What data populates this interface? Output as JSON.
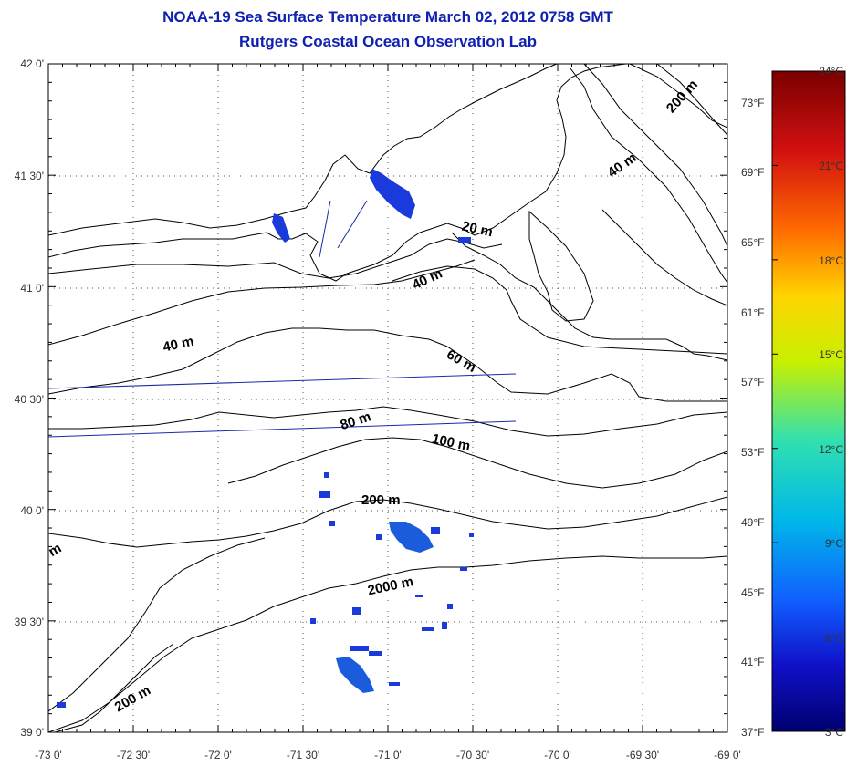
{
  "title": {
    "line1": "NOAA-19 Sea Surface Temperature March 02, 2012 0758 GMT",
    "line2": "Rutgers Coastal Ocean Observation Lab"
  },
  "map": {
    "lat_labels": [
      "42 0'",
      "41 30'",
      "41 0'",
      "40 30'",
      "40 0'",
      "39 30'",
      "39 0'"
    ],
    "lon_labels": [
      "-73 0'",
      "-72 30'",
      "-72 0'",
      "-71 30'",
      "-71 0'",
      "-70 30'",
      "-70 0'",
      "-69 30'",
      "-69 0'"
    ],
    "lat_range": [
      39.0,
      42.0
    ],
    "lon_range": [
      -73.0,
      -69.0
    ],
    "right_axis_labels": [
      "73°F",
      "69°F",
      "65°F",
      "61°F",
      "57°F",
      "53°F",
      "49°F",
      "45°F",
      "41°F"
    ]
  },
  "contour_labels": [
    {
      "id": "c200ne",
      "text": "200 m"
    },
    {
      "id": "c40ne",
      "text": "40 m"
    },
    {
      "id": "c20",
      "text": "20 m"
    },
    {
      "id": "c40a",
      "text": "40 m"
    },
    {
      "id": "c40b",
      "text": "40 m"
    },
    {
      "id": "c60",
      "text": "60 m"
    },
    {
      "id": "c80",
      "text": "80 m"
    },
    {
      "id": "c100",
      "text": "100 m"
    },
    {
      "id": "c200",
      "text": "200 m"
    },
    {
      "id": "c2000",
      "text": "2000 m"
    },
    {
      "id": "c200sw",
      "text": "200 m"
    },
    {
      "id": "cpartial",
      "text": "m"
    }
  ],
  "colorbar": {
    "celsius_labels": [
      "24°C",
      "21°C",
      "18°C",
      "15°C",
      "12°C",
      "9°C",
      "6°C",
      "3°C"
    ],
    "fahrenheit_bottom": "37°F",
    "colors": [
      "#7a0000",
      "#d21010",
      "#ff6a00",
      "#ffd400",
      "#c8f000",
      "#30e0b0",
      "#00b8e8",
      "#1060ff",
      "#1010c8",
      "#000070"
    ]
  }
}
